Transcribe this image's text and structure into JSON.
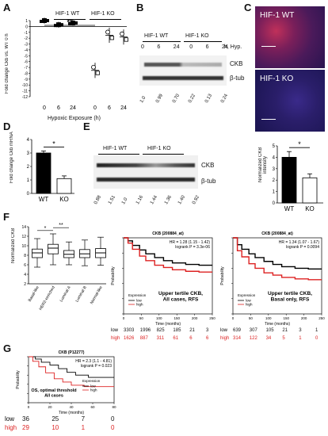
{
  "panels": {
    "A": {
      "letter": "A",
      "legend_wt": "HIF-1 WT",
      "legend_ko": "HIF-1 KO",
      "ylabel": "Fold change Ckb vs. WT 0 h",
      "xlabel": "Hypoxic Exposure (h)",
      "sig": "**",
      "yticks": [
        "1",
        "0",
        "-1",
        "-2",
        "-3",
        "-4",
        "-5",
        "-6",
        "-7",
        "-8",
        "-9",
        "-10",
        "-11",
        "-12"
      ],
      "xticks": [
        "0",
        "6",
        "24",
        "0",
        "6",
        "24"
      ]
    },
    "B": {
      "letter": "B",
      "wt": "HIF-1 WT",
      "ko": "HIF-1 KO",
      "hyp_label": "h, Hyp.",
      "times": [
        "0",
        "6",
        "24",
        "0",
        "6",
        "24"
      ],
      "band1": "CKB",
      "band2": "β-tub",
      "quant": [
        "1.0",
        "0.99",
        "0.70",
        "0.22",
        "0.13",
        "0.24"
      ]
    },
    "C": {
      "letter": "C",
      "top": "HIF-1 WT",
      "bottom": "HIF-1 KO"
    },
    "D": {
      "letter": "D",
      "ylabel": "Fold change Ckb mRNA",
      "sig": "*",
      "cats": [
        "WT",
        "KO"
      ],
      "yticks": [
        "0",
        "1",
        "2",
        "3",
        "4"
      ]
    },
    "E": {
      "letter": "E",
      "wt": "HIF-1 WT",
      "ko": "HIF-1 KO",
      "band1": "CKB",
      "band2": "β-tub",
      "quant": [
        "0.88",
        "1.51",
        "1.0",
        "1.16",
        "1.44",
        "1.36",
        "1.40",
        "0.92"
      ],
      "ylabel": "Normalized CKB intensity",
      "sig": "*",
      "cats": [
        "WT",
        "KO"
      ],
      "yticks": [
        "0",
        "1",
        "2",
        "3",
        "4",
        "5"
      ]
    },
    "F": {
      "letter": "F",
      "ylabel": "Normalized CKB",
      "yticks": [
        "14",
        "12",
        "10",
        "8",
        "6",
        "4",
        "2"
      ],
      "sig1": "*",
      "sig2": "**",
      "cats": [
        "Basal-like",
        "HER2-enriched",
        "Luminal A",
        "Luminal B",
        "Normal-like"
      ],
      "km1": {
        "title": "CKB (200884_at)",
        "hr": "HR = 1.28 (1.15 - 1.42)",
        "logrank": "logrank P = 3.3e-06",
        "ylabel": "Probability",
        "xlabel": "Time (months)",
        "caption1": "Upper tertile CKB,",
        "caption2": "All cases, RFS",
        "legend_title": "Expression",
        "legend_low": "low",
        "legend_high": "high",
        "xticks": [
          "0",
          "50",
          "100",
          "150",
          "200",
          "250"
        ],
        "risk_low_label": "low",
        "risk_high_label": "high",
        "risk_low": [
          "3303",
          "1996",
          "825",
          "185",
          "21",
          "3"
        ],
        "risk_high": [
          "1626",
          "887",
          "311",
          "61",
          "6",
          "6"
        ]
      },
      "km2": {
        "title": "CKB (200884_at)",
        "hr": "HR = 1.34 (1.07 - 1.67)",
        "logrank": "logrank P = 0.0094",
        "ylabel": "Probability",
        "xlabel": "Time (months)",
        "caption1": "Upper tertile CKB,",
        "caption2": "Basal only, RFS",
        "legend_title": "Expression",
        "legend_low": "low",
        "legend_high": "high",
        "xticks": [
          "0",
          "50",
          "100",
          "150",
          "200",
          "250"
        ],
        "risk_low_label": "low",
        "risk_high_label": "high",
        "risk_low": [
          "639",
          "307",
          "105",
          "21",
          "3",
          "1"
        ],
        "risk_high": [
          "314",
          "122",
          "34",
          "5",
          "1",
          "0"
        ]
      }
    },
    "G": {
      "letter": "G",
      "title": "CKB (P12277)",
      "hr": "HR = 2.3 (1.1 - 4.81)",
      "logrank": "logrank P = 0.023",
      "ylabel": "Probability",
      "xlabel": "Time (months)",
      "caption1": "OS, optimal threshold",
      "caption2": "All cases",
      "legend_title": "Expression",
      "legend_low": "low",
      "legend_high": "high",
      "xticks": [
        "0",
        "20",
        "40",
        "60",
        "80"
      ],
      "risk_low_label": "low",
      "risk_high_label": "high",
      "risk_low": [
        "36",
        "25",
        "7",
        "0"
      ],
      "risk_high": [
        "29",
        "10",
        "1",
        "0"
      ]
    }
  },
  "chart_data": [
    {
      "panel": "A",
      "type": "scatter",
      "categories": [
        "0",
        "6",
        "24",
        "0",
        "6",
        "24"
      ],
      "series": [
        {
          "name": "HIF-1 WT",
          "values": [
            1,
            0.3,
            0.6
          ]
        },
        {
          "name": "HIF-1 KO",
          "values": [
            -7.5,
            -1.5,
            -1.8
          ]
        }
      ],
      "xlabel": "Hypoxic Exposure (h)",
      "ylabel": "Fold change Ckb vs. WT 0 h",
      "ylim": [
        -12,
        1
      ]
    },
    {
      "panel": "D",
      "type": "bar",
      "categories": [
        "WT",
        "KO"
      ],
      "values": [
        3.0,
        1.1
      ],
      "errors": [
        0.15,
        0.2
      ],
      "ylabel": "Fold change Ckb mRNA",
      "ylim": [
        0,
        4
      ]
    },
    {
      "panel": "E",
      "type": "bar",
      "categories": [
        "WT",
        "KO"
      ],
      "values": [
        4.0,
        2.2
      ],
      "errors": [
        0.5,
        0.35
      ],
      "ylabel": "Normalized CKB intensity",
      "ylim": [
        0,
        5
      ]
    },
    {
      "panel": "F",
      "type": "box",
      "categories": [
        "Basal-like",
        "HER2-enriched",
        "Luminal A",
        "Luminal B",
        "Normal-like"
      ],
      "medians": [
        8.5,
        9.5,
        8.2,
        8.3,
        8.5
      ],
      "q1": [
        7.5,
        8.3,
        7.5,
        7.5,
        7.5
      ],
      "q3": [
        9.3,
        10.3,
        9.0,
        9.2,
        9.4
      ],
      "whisker_low": [
        5.5,
        6.0,
        6.0,
        5.8,
        5.9
      ],
      "whisker_high": [
        11.5,
        12.5,
        10.8,
        11.2,
        11.8
      ],
      "ylabel": "Normalized CKB",
      "ylim": [
        2,
        14
      ]
    }
  ]
}
